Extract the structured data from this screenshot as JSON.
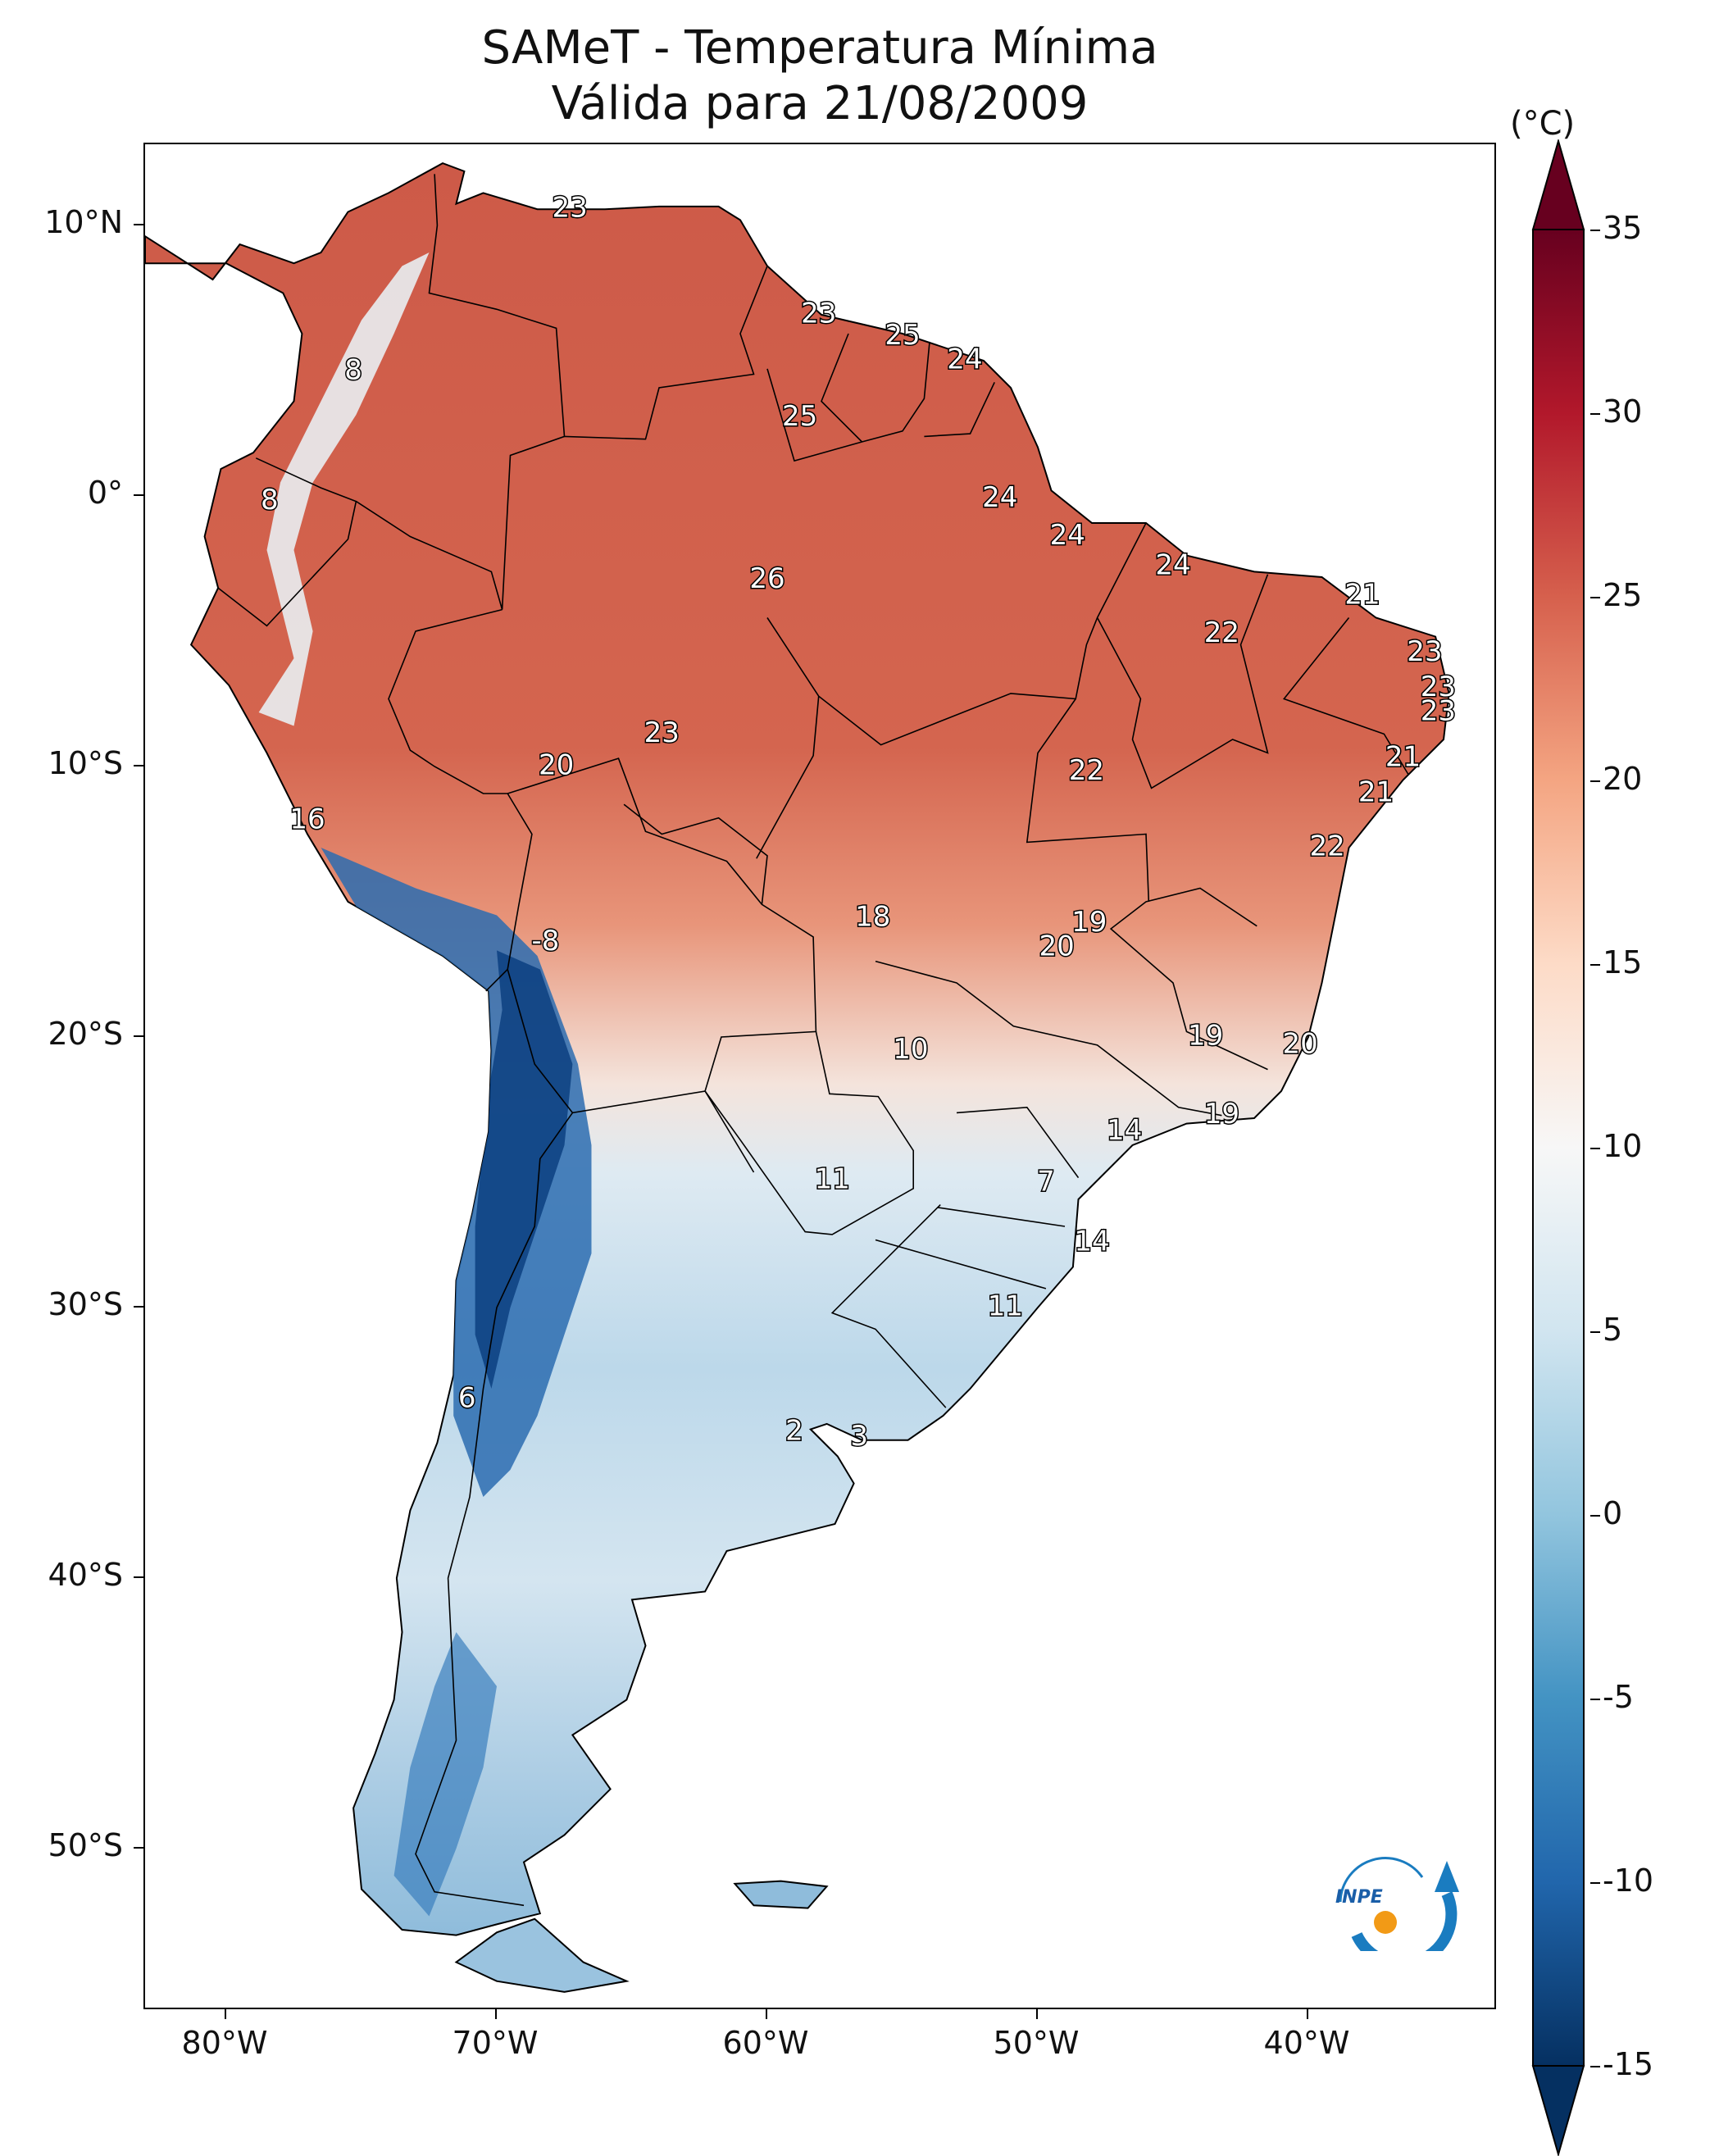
{
  "title_line1": "SAMeT - Temperatura Mínima",
  "title_line2": "Válida para 21/08/2009",
  "lat_ticks": [
    {
      "label": "10°N",
      "lat": 10
    },
    {
      "label": "0°",
      "lat": 0
    },
    {
      "label": "10°S",
      "lat": -10
    },
    {
      "label": "20°S",
      "lat": -20
    },
    {
      "label": "30°S",
      "lat": -30
    },
    {
      "label": "40°S",
      "lat": -40
    },
    {
      "label": "50°S",
      "lat": -50
    }
  ],
  "lon_ticks": [
    {
      "label": "80°W",
      "lon": -80
    },
    {
      "label": "70°W",
      "lon": -70
    },
    {
      "label": "60°W",
      "lon": -60
    },
    {
      "label": "50°W",
      "lon": -50
    },
    {
      "label": "40°W",
      "lon": -40
    }
  ],
  "colorbar": {
    "unit": "(°C)",
    "min": -15,
    "max": 35,
    "ticks": [
      "35",
      "30",
      "25",
      "20",
      "15",
      "10",
      "5",
      "0",
      "-5",
      "-10",
      "-15"
    ],
    "colors": [
      "#053061",
      "#2166ac",
      "#4393c3",
      "#92c5de",
      "#d1e5f0",
      "#f7f7f7",
      "#fddbc7",
      "#f4a582",
      "#d6604d",
      "#b2182b",
      "#67001f"
    ]
  },
  "chart_data": {
    "type": "map",
    "variable": "Temperatura Mínima",
    "unit": "°C",
    "date": "21/08/2009",
    "extent": {
      "lon": [
        -83,
        -33
      ],
      "lat": [
        -56,
        13
      ]
    },
    "station_labels": [
      {
        "value": "23",
        "lon": -67.3,
        "lat": 10.6
      },
      {
        "value": "8",
        "lon": -75.3,
        "lat": 4.6
      },
      {
        "value": "8",
        "lon": -78.4,
        "lat": -0.2
      },
      {
        "value": "23",
        "lon": -58.1,
        "lat": 6.7
      },
      {
        "value": "25",
        "lon": -55.0,
        "lat": 5.9
      },
      {
        "value": "24",
        "lon": -52.7,
        "lat": 5.0
      },
      {
        "value": "25",
        "lon": -58.8,
        "lat": 2.9
      },
      {
        "value": "24",
        "lon": -51.4,
        "lat": -0.1
      },
      {
        "value": "24",
        "lon": -48.9,
        "lat": -1.5
      },
      {
        "value": "24",
        "lon": -45.0,
        "lat": -2.6
      },
      {
        "value": "26",
        "lon": -60.0,
        "lat": -3.1
      },
      {
        "value": "21",
        "lon": -38.0,
        "lat": -3.7
      },
      {
        "value": "22",
        "lon": -43.2,
        "lat": -5.1
      },
      {
        "value": "23",
        "lon": -35.7,
        "lat": -5.8
      },
      {
        "value": "23",
        "lon": -35.2,
        "lat": -7.1
      },
      {
        "value": "23",
        "lon": -35.2,
        "lat": -8.0
      },
      {
        "value": "23",
        "lon": -63.9,
        "lat": -8.8
      },
      {
        "value": "20",
        "lon": -67.8,
        "lat": -10.0
      },
      {
        "value": "22",
        "lon": -48.2,
        "lat": -10.2
      },
      {
        "value": "21",
        "lon": -36.5,
        "lat": -9.7
      },
      {
        "value": "21",
        "lon": -37.5,
        "lat": -11.0
      },
      {
        "value": "16",
        "lon": -77.0,
        "lat": -12.0
      },
      {
        "value": "22",
        "lon": -39.3,
        "lat": -13.0
      },
      {
        "value": "18",
        "lon": -56.1,
        "lat": -15.6
      },
      {
        "value": "19",
        "lon": -48.1,
        "lat": -15.8
      },
      {
        "value": "20",
        "lon": -49.3,
        "lat": -16.7
      },
      {
        "value": "-8",
        "lon": -68.2,
        "lat": -16.5
      },
      {
        "value": "10",
        "lon": -54.7,
        "lat": -20.5
      },
      {
        "value": "19",
        "lon": -43.8,
        "lat": -20.0
      },
      {
        "value": "20",
        "lon": -40.3,
        "lat": -20.3
      },
      {
        "value": "14",
        "lon": -46.8,
        "lat": -23.5
      },
      {
        "value": "19",
        "lon": -43.2,
        "lat": -22.9
      },
      {
        "value": "11",
        "lon": -57.6,
        "lat": -25.3
      },
      {
        "value": "7",
        "lon": -49.7,
        "lat": -25.4
      },
      {
        "value": "14",
        "lon": -48.0,
        "lat": -27.6
      },
      {
        "value": "11",
        "lon": -51.2,
        "lat": -30.0
      },
      {
        "value": "6",
        "lon": -71.1,
        "lat": -33.4
      },
      {
        "value": "2",
        "lon": -59.0,
        "lat": -34.6
      },
      {
        "value": "3",
        "lon": -56.6,
        "lat": -34.8
      }
    ]
  }
}
